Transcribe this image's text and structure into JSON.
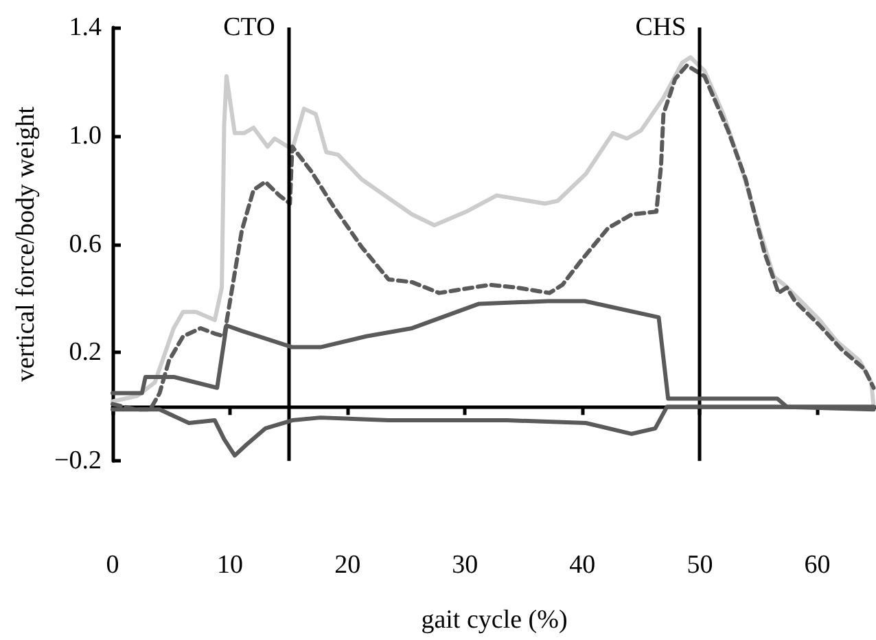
{
  "chart_data": {
    "type": "line",
    "xlabel": "gait cycle (%)",
    "ylabel": "vertical force/body weight",
    "xlim": [
      0,
      65
    ],
    "xticks": [
      0,
      10,
      20,
      30,
      40,
      50,
      60
    ],
    "ylim": [
      -0.2,
      1.4
    ],
    "yticks": [
      {
        "value": -0.2,
        "label": "−0.2"
      },
      0.2,
      0.6,
      {
        "value": 1.0,
        "label": "1.0"
      },
      1.4
    ],
    "grid": false,
    "marker": "none",
    "ref_lines": [
      {
        "axis": "x",
        "value": 15,
        "label": "CTO",
        "color": "#000000"
      },
      {
        "axis": "x",
        "value": 50,
        "label": "CHS",
        "color": "#000000"
      }
    ],
    "series": [
      {
        "color": "#cccccc",
        "line_style": "solid",
        "x": [
          0,
          2.1,
          3.6,
          5.2,
          6.0,
          7.1,
          8.7,
          9.3,
          9.5,
          9.7,
          10.4,
          11.2,
          12.0,
          13.2,
          13.8,
          15.3,
          16.3,
          17.3,
          18.2,
          19.2,
          21.2,
          23.5,
          25.5,
          27.4,
          30.1,
          32.7,
          36.8,
          37.9,
          40.3,
          42.6,
          43.8,
          45.0,
          46.9,
          48.5,
          49.2,
          50.4,
          52.0,
          53.5,
          55.1,
          56.3,
          57.2,
          58.6,
          60.2,
          61.7,
          63.6,
          64.6,
          64.8
        ],
        "values": [
          0.02,
          0.04,
          0.09,
          0.29,
          0.35,
          0.35,
          0.32,
          0.44,
          1.04,
          1.22,
          1.01,
          1.01,
          1.03,
          0.96,
          0.99,
          0.95,
          1.1,
          1.08,
          0.94,
          0.93,
          0.84,
          0.77,
          0.71,
          0.67,
          0.72,
          0.78,
          0.75,
          0.76,
          0.86,
          1.01,
          0.99,
          1.02,
          1.14,
          1.27,
          1.29,
          1.24,
          1.08,
          0.89,
          0.65,
          0.48,
          0.45,
          0.39,
          0.32,
          0.24,
          0.17,
          0.09,
          0.0
        ]
      },
      {
        "color": "#5a5a5a",
        "line_style": "dashed",
        "x": [
          0,
          2.0,
          3.2,
          4.0,
          4.8,
          6.0,
          7.5,
          8.7,
          9.5,
          11.0,
          12.0,
          13.0,
          14.2,
          15.1,
          15.3,
          16.9,
          18.8,
          21.2,
          23.5,
          25.5,
          27.8,
          32.1,
          34.4,
          37.2,
          38.3,
          39.9,
          42.2,
          44.2,
          46.3,
          46.7,
          46.9,
          47.9,
          48.9,
          50.4,
          52.4,
          53.9,
          55.5,
          56.7,
          57.4,
          58.1,
          60.2,
          62.1,
          64.0,
          64.8
        ],
        "values": [
          0.01,
          -0.01,
          -0.01,
          0.05,
          0.17,
          0.26,
          0.29,
          0.27,
          0.26,
          0.65,
          0.8,
          0.83,
          0.78,
          0.75,
          0.96,
          0.87,
          0.74,
          0.59,
          0.47,
          0.46,
          0.42,
          0.45,
          0.44,
          0.42,
          0.45,
          0.54,
          0.66,
          0.71,
          0.72,
          0.89,
          1.08,
          1.21,
          1.26,
          1.22,
          1.02,
          0.84,
          0.57,
          0.42,
          0.44,
          0.39,
          0.3,
          0.21,
          0.14,
          0.07
        ]
      },
      {
        "color": "#5a5a5a",
        "line_style": "solid",
        "x": [
          0,
          2.5,
          2.8,
          5.2,
          8.9,
          9.7,
          11.0,
          15.3,
          17.7,
          21.6,
          25.5,
          31.2,
          37.1,
          40.2,
          46.5,
          47.3,
          56.6,
          57.4,
          64.8
        ],
        "values": [
          0.05,
          0.05,
          0.11,
          0.11,
          0.07,
          0.3,
          0.28,
          0.22,
          0.22,
          0.26,
          0.29,
          0.38,
          0.39,
          0.39,
          0.33,
          0.03,
          0.03,
          0.0,
          0.0
        ]
      },
      {
        "color": "#5a5a5a",
        "line_style": "solid",
        "x": [
          0,
          4.0,
          6.5,
          8.7,
          9.5,
          10.4,
          11.4,
          13.0,
          15.3,
          17.7,
          23.5,
          29.0,
          33.6,
          40.3,
          44.2,
          46.2,
          47.2,
          56.6,
          64.8
        ],
        "values": [
          -0.01,
          -0.01,
          -0.06,
          -0.05,
          -0.12,
          -0.18,
          -0.14,
          -0.08,
          -0.05,
          -0.04,
          -0.05,
          -0.05,
          -0.05,
          -0.06,
          -0.1,
          -0.08,
          0.0,
          0.0,
          -0.01
        ]
      }
    ]
  }
}
